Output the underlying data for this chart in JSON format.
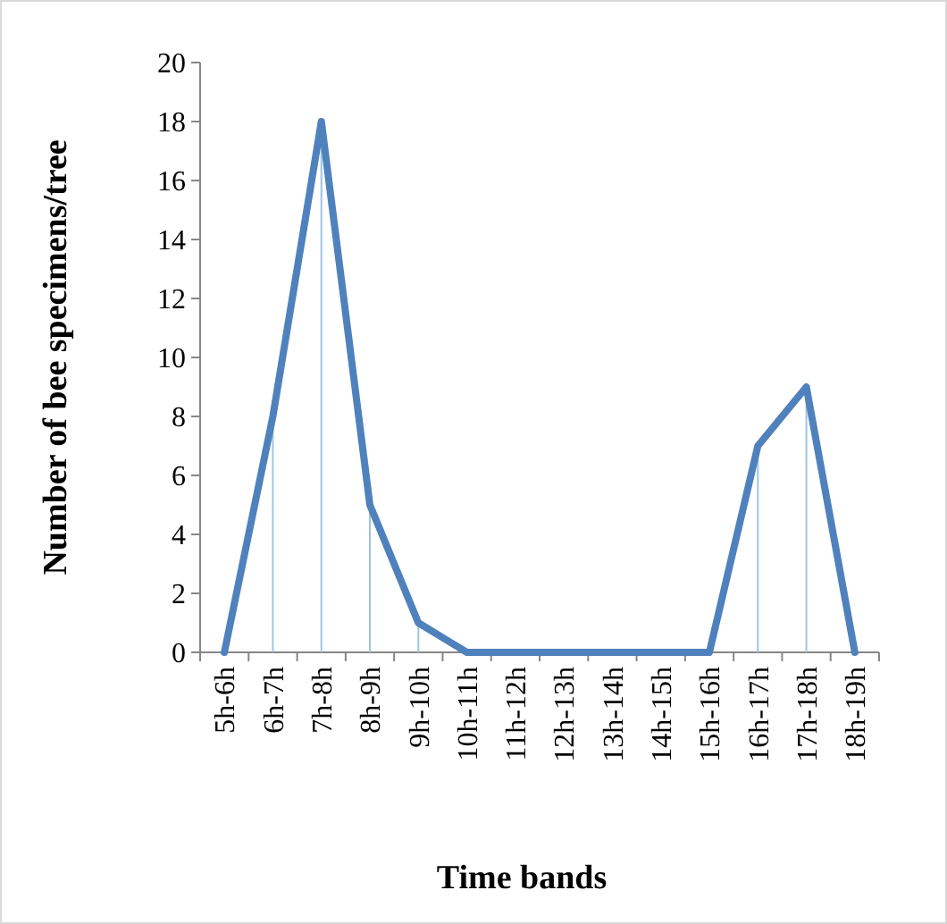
{
  "chart_data": {
    "type": "line",
    "xlabel": "Time bands",
    "ylabel": "Number of bee specimens/tree",
    "categories": [
      "5h-6h",
      "6h-7h",
      "7h-8h",
      "8h-9h",
      "9h-10h",
      "10h-11h",
      "11h-12h",
      "12h-13h",
      "13h-14h",
      "14h-15h",
      "15h-16h",
      "16h-17h",
      "17h-18h",
      "18h-19h"
    ],
    "series": [
      {
        "color": "#4f81bd",
        "values": [
          0,
          8,
          18,
          5,
          1,
          0,
          0,
          0,
          0,
          0,
          0,
          7,
          9,
          0
        ],
        "errors": [
          null,
          [
            0,
            8
          ],
          [
            0,
            18
          ],
          [
            0,
            5
          ],
          [
            0,
            1
          ],
          null,
          null,
          null,
          null,
          null,
          null,
          [
            0,
            7
          ],
          [
            0,
            9
          ],
          null
        ]
      }
    ],
    "ylim": [
      0,
      20
    ],
    "yticks": [
      0,
      2,
      4,
      6,
      8,
      10,
      12,
      14,
      16,
      18,
      20
    ],
    "grid": false,
    "marker": "none",
    "line_style": "solid"
  }
}
